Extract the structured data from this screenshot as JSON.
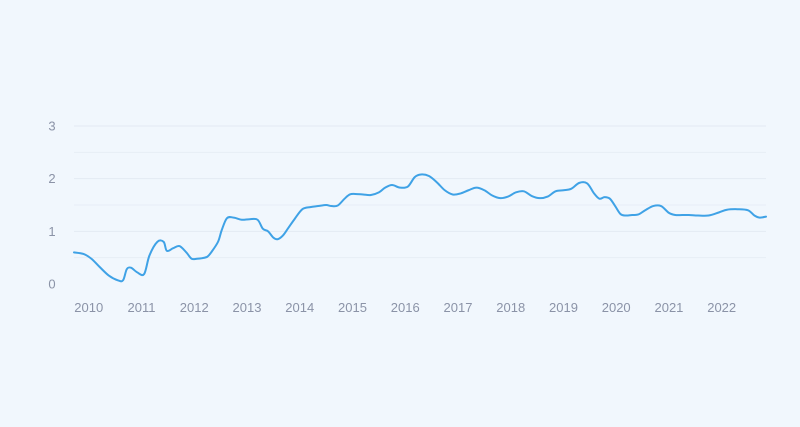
{
  "chart_data": {
    "type": "line",
    "title": "",
    "xlabel": "",
    "ylabel": "",
    "grid": true,
    "legend": "none",
    "colors": {
      "line": "#3FA2E6",
      "grid": "#E3EAF2",
      "background": "#F1F7FD",
      "tick_text": "#8B93A7"
    },
    "xlim": [
      2009.72,
      2022.84
    ],
    "ylim": [
      0,
      3
    ],
    "x_ticks": [
      {
        "value": 2010,
        "label": "2010"
      },
      {
        "value": 2011,
        "label": "2011"
      },
      {
        "value": 2012,
        "label": "2012"
      },
      {
        "value": 2013,
        "label": "2013"
      },
      {
        "value": 2014,
        "label": "2014"
      },
      {
        "value": 2015,
        "label": "2015"
      },
      {
        "value": 2016,
        "label": "2016"
      },
      {
        "value": 2017,
        "label": "2017"
      },
      {
        "value": 2018,
        "label": "2018"
      },
      {
        "value": 2019,
        "label": "2019"
      },
      {
        "value": 2020,
        "label": "2020"
      },
      {
        "value": 2021,
        "label": "2021"
      },
      {
        "value": 2022,
        "label": "2022"
      }
    ],
    "y_ticks": [
      {
        "value": 0,
        "label": "0"
      },
      {
        "value": 1,
        "label": "1"
      },
      {
        "value": 2,
        "label": "2"
      },
      {
        "value": 3,
        "label": "3"
      }
    ],
    "y_minor_gridlines": [
      0.5,
      1.5,
      2.5
    ],
    "series": [
      {
        "color": "#3FA2E6",
        "x": [
          2009.72,
          2009.9,
          2010.05,
          2010.2,
          2010.38,
          2010.55,
          2010.65,
          2010.72,
          2010.8,
          2010.92,
          2011.05,
          2011.15,
          2011.3,
          2011.42,
          2011.48,
          2011.6,
          2011.72,
          2011.85,
          2011.95,
          2012.05,
          2012.15,
          2012.25,
          2012.32,
          2012.45,
          2012.52,
          2012.62,
          2012.75,
          2012.9,
          2013.05,
          2013.2,
          2013.3,
          2013.4,
          2013.5,
          2013.58,
          2013.68,
          2013.78,
          2013.9,
          2014.05,
          2014.2,
          2014.35,
          2014.5,
          2014.6,
          2014.72,
          2014.85,
          2014.95,
          2015.05,
          2015.2,
          2015.35,
          2015.5,
          2015.62,
          2015.75,
          2015.9,
          2016.05,
          2016.18,
          2016.3,
          2016.45,
          2016.6,
          2016.75,
          2016.9,
          2017.05,
          2017.2,
          2017.35,
          2017.5,
          2017.65,
          2017.8,
          2017.95,
          2018.1,
          2018.25,
          2018.4,
          2018.55,
          2018.7,
          2018.85,
          2019.0,
          2019.15,
          2019.3,
          2019.45,
          2019.58,
          2019.68,
          2019.78,
          2019.88,
          2019.98,
          2020.08,
          2020.18,
          2020.3,
          2020.42,
          2020.55,
          2020.7,
          2020.85,
          2021.0,
          2021.12,
          2021.25,
          2021.38,
          2021.55,
          2021.75,
          2021.95,
          2022.1,
          2022.3,
          2022.5,
          2022.62,
          2022.72,
          2022.84
        ],
        "y": [
          0.6,
          0.57,
          0.48,
          0.33,
          0.16,
          0.07,
          0.07,
          0.28,
          0.31,
          0.22,
          0.19,
          0.54,
          0.8,
          0.8,
          0.63,
          0.68,
          0.72,
          0.6,
          0.48,
          0.48,
          0.49,
          0.52,
          0.6,
          0.8,
          1.02,
          1.25,
          1.26,
          1.22,
          1.23,
          1.22,
          1.05,
          1.0,
          0.88,
          0.85,
          0.92,
          1.06,
          1.23,
          1.42,
          1.46,
          1.48,
          1.5,
          1.48,
          1.49,
          1.62,
          1.7,
          1.71,
          1.7,
          1.69,
          1.74,
          1.83,
          1.88,
          1.83,
          1.85,
          2.03,
          2.08,
          2.05,
          1.93,
          1.78,
          1.7,
          1.72,
          1.78,
          1.83,
          1.78,
          1.68,
          1.63,
          1.66,
          1.74,
          1.76,
          1.67,
          1.63,
          1.66,
          1.76,
          1.78,
          1.81,
          1.92,
          1.91,
          1.72,
          1.62,
          1.65,
          1.62,
          1.48,
          1.33,
          1.3,
          1.31,
          1.32,
          1.4,
          1.48,
          1.48,
          1.35,
          1.31,
          1.31,
          1.31,
          1.3,
          1.3,
          1.36,
          1.41,
          1.42,
          1.4,
          1.3,
          1.26,
          1.28
        ]
      }
    ]
  }
}
